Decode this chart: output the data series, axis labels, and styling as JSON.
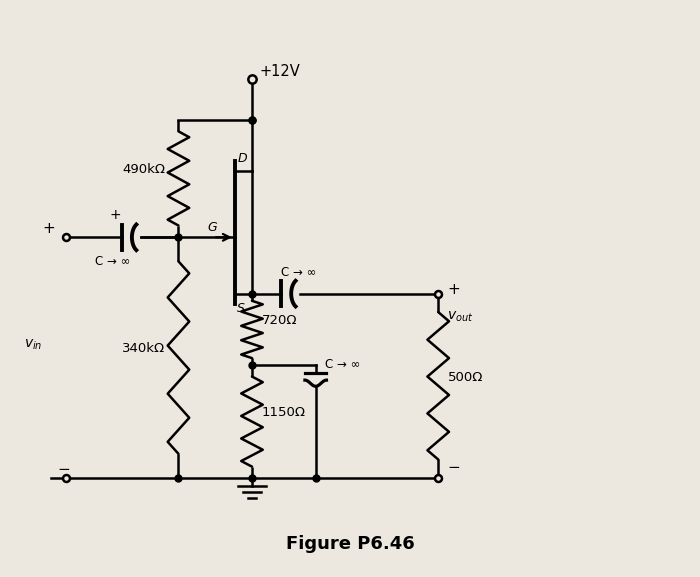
{
  "title": "Figure P6.46",
  "bg_color": "#ede8df",
  "lc": "black",
  "lw": 1.8,
  "R1": "490kΩ",
  "R2": "340kΩ",
  "R3": "720Ω",
  "R4": "1150Ω",
  "R5": "500Ω",
  "vdd": "+12V",
  "vin": "v",
  "vin_sub": "in",
  "vout": "v",
  "vout_sub": "out",
  "cap_label": "C → ∞",
  "G_label": "G",
  "D_label": "D",
  "S_label": "S"
}
